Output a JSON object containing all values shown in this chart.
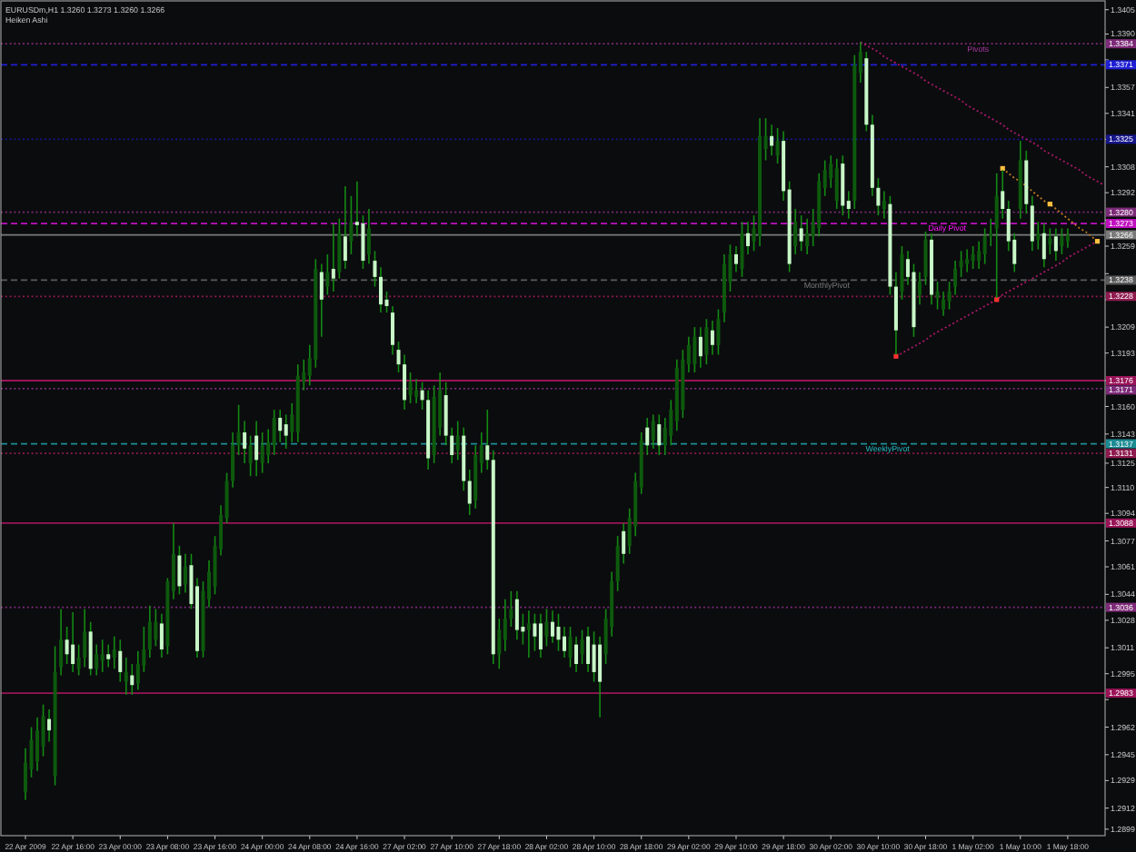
{
  "chart_data": {
    "type": "candlestick",
    "title": "EURUSDm,H1 1.3260 1.3273 1.3260 1.3266",
    "subtitle": "Heiken Ashi",
    "categories": [
      "22 Apr 2009",
      null,
      null,
      null,
      null,
      null,
      null,
      null,
      "22 Apr 16:00",
      null,
      null,
      null,
      null,
      null,
      null,
      null,
      "23 Apr 00:00",
      null,
      null,
      null,
      null,
      null,
      null,
      null,
      "23 Apr 08:00",
      null,
      null,
      null,
      null,
      null,
      null,
      null,
      "23 Apr 16:00",
      null,
      null,
      null,
      null,
      null,
      null,
      null,
      "24 Apr 00:00",
      null,
      null,
      null,
      null,
      null,
      null,
      null,
      "24 Apr 08:00",
      null,
      null,
      null,
      null,
      null,
      null,
      null,
      "24 Apr 16:00",
      null,
      null,
      null,
      null,
      null,
      null,
      null,
      "27 Apr 02:00",
      null,
      null,
      null,
      null,
      null,
      null,
      null,
      "27 Apr 10:00",
      null,
      null,
      null,
      null,
      null,
      null,
      null,
      "27 Apr 18:00",
      null,
      null,
      null,
      null,
      null,
      null,
      null,
      "28 Apr 02:00",
      null,
      null,
      null,
      null,
      null,
      null,
      null,
      "28 Apr 10:00",
      null,
      null,
      null,
      null,
      null,
      null,
      null,
      "28 Apr 18:00",
      null,
      null,
      null,
      null,
      null,
      null,
      null,
      "29 Apr 02:00",
      null,
      null,
      null,
      null,
      null,
      null,
      null,
      "29 Apr 10:00",
      null,
      null,
      null,
      null,
      null,
      null,
      null,
      "29 Apr 18:00",
      null,
      null,
      null,
      null,
      null,
      null,
      null,
      "30 Apr 02:00",
      null,
      null,
      null,
      null,
      null,
      null,
      null,
      "30 Apr 10:00",
      null,
      null,
      null,
      null,
      null,
      null,
      null,
      "30 Apr 18:00",
      null,
      null,
      null,
      null,
      null,
      null,
      null,
      "1 May 02:00",
      null,
      null,
      null,
      null,
      null,
      null,
      null,
      "1 May 10:00",
      null,
      null,
      null,
      null,
      null,
      null,
      null,
      "1 May 18:00",
      null,
      null,
      null,
      null,
      null,
      null
    ],
    "ohlc": [
      [
        1.2922,
        1.2949,
        1.2917,
        1.294
      ],
      [
        1.2936,
        1.2962,
        1.2931,
        1.2954
      ],
      [
        1.2941,
        1.2968,
        1.2935,
        1.296
      ],
      [
        1.295,
        1.2976,
        1.2944,
        1.2969
      ],
      [
        1.2967,
        1.2973,
        1.2953,
        1.296
      ],
      [
        1.2932,
        1.3012,
        1.2926,
        1.2996
      ],
      [
        1.2999,
        1.3035,
        1.2994,
        1.3016
      ],
      [
        1.3016,
        1.3024,
        1.3001,
        1.3007
      ],
      [
        1.3013,
        1.3033,
        1.2996,
        1.3001
      ],
      [
        1.2998,
        1.3013,
        1.2994,
        1.3005
      ],
      [
        1.3005,
        1.3035,
        1.2999,
        1.3021
      ],
      [
        1.3021,
        1.3027,
        1.2994,
        1.2998
      ],
      [
        1.2998,
        1.3013,
        1.2994,
        1.3007
      ],
      [
        1.3003,
        1.3016,
        1.2996,
        1.3007
      ],
      [
        1.3007,
        1.3013,
        1.2999,
        1.3004
      ],
      [
        1.3005,
        1.3018,
        1.2998,
        1.301
      ],
      [
        1.3009,
        1.3016,
        1.299,
        1.2996
      ],
      [
        1.299,
        1.3005,
        1.2982,
        1.2996
      ],
      [
        1.2994,
        1.3001,
        1.2982,
        1.2988
      ],
      [
        1.2989,
        1.3009,
        1.2985,
        1.3001
      ],
      [
        1.3,
        1.3024,
        1.2996,
        1.301
      ],
      [
        1.301,
        1.3037,
        1.3005,
        1.3027
      ],
      [
        1.3016,
        1.3035,
        1.3012,
        1.3027
      ],
      [
        1.3026,
        1.3032,
        1.3005,
        1.301
      ],
      [
        1.3012,
        1.3054,
        1.3007,
        1.3052
      ],
      [
        1.3046,
        1.3088,
        1.3041,
        1.3069
      ],
      [
        1.3068,
        1.3074,
        1.3044,
        1.3049
      ],
      [
        1.305,
        1.3069,
        1.3045,
        1.3061
      ],
      [
        1.3062,
        1.3069,
        1.3035,
        1.3038
      ],
      [
        1.3049,
        1.3054,
        1.3005,
        1.3009
      ],
      [
        1.3009,
        1.3052,
        1.3005,
        1.3046
      ],
      [
        1.3041,
        1.3065,
        1.3036,
        1.3058
      ],
      [
        1.3049,
        1.308,
        1.3044,
        1.3074
      ],
      [
        1.3072,
        1.3099,
        1.3068,
        1.3093
      ],
      [
        1.3091,
        1.3119,
        1.3088,
        1.3114
      ],
      [
        1.3114,
        1.3144,
        1.311,
        1.3136
      ],
      [
        1.3136,
        1.3161,
        1.313,
        1.3144
      ],
      [
        1.3144,
        1.3151,
        1.3125,
        1.3134
      ],
      [
        1.3125,
        1.3142,
        1.3117,
        1.3136
      ],
      [
        1.3142,
        1.3151,
        1.3117,
        1.3127
      ],
      [
        1.3125,
        1.3144,
        1.3119,
        1.3136
      ],
      [
        1.313,
        1.3146,
        1.3125,
        1.3138
      ],
      [
        1.3136,
        1.3158,
        1.313,
        1.3153
      ],
      [
        1.3153,
        1.3158,
        1.3138,
        1.3145
      ],
      [
        1.3149,
        1.3155,
        1.3134,
        1.3142
      ],
      [
        1.3144,
        1.3162,
        1.3138,
        1.3155
      ],
      [
        1.3144,
        1.3186,
        1.3138,
        1.3179
      ],
      [
        1.3175,
        1.3189,
        1.317,
        1.3181
      ],
      [
        1.3179,
        1.3198,
        1.3173,
        1.319
      ],
      [
        1.3189,
        1.3251,
        1.3184,
        1.3245
      ],
      [
        1.3243,
        1.3248,
        1.3203,
        1.3226
      ],
      [
        1.3234,
        1.3254,
        1.3229,
        1.3243
      ],
      [
        1.3245,
        1.3273,
        1.3231,
        1.3239
      ],
      [
        1.3243,
        1.3276,
        1.3239,
        1.3267
      ],
      [
        1.3265,
        1.3296,
        1.3245,
        1.325
      ],
      [
        1.3262,
        1.329,
        1.3254,
        1.3274
      ],
      [
        1.3274,
        1.3299,
        1.3265,
        1.3272
      ],
      [
        1.3273,
        1.3278,
        1.3245,
        1.325
      ],
      [
        1.3254,
        1.3282,
        1.3248,
        1.327
      ],
      [
        1.325,
        1.3256,
        1.3234,
        1.324
      ],
      [
        1.324,
        1.3246,
        1.3218,
        1.3223
      ],
      [
        1.3226,
        1.3231,
        1.3218,
        1.3222
      ],
      [
        1.3218,
        1.3222,
        1.3192,
        1.3198
      ],
      [
        1.3195,
        1.32,
        1.3181,
        1.3186
      ],
      [
        1.3186,
        1.3192,
        1.3158,
        1.3164
      ],
      [
        1.3167,
        1.3181,
        1.3162,
        1.3175
      ],
      [
        1.3166,
        1.3177,
        1.3162,
        1.317
      ],
      [
        1.317,
        1.3175,
        1.3158,
        1.3164
      ],
      [
        1.3164,
        1.317,
        1.3121,
        1.3128
      ],
      [
        1.313,
        1.3173,
        1.3125,
        1.3166
      ],
      [
        1.3147,
        1.3181,
        1.3142,
        1.317
      ],
      [
        1.3167,
        1.3175,
        1.3136,
        1.3142
      ],
      [
        1.3142,
        1.3147,
        1.3125,
        1.313
      ],
      [
        1.3133,
        1.3151,
        1.3127,
        1.3142
      ],
      [
        1.3142,
        1.3147,
        1.3108,
        1.3114
      ],
      [
        1.3114,
        1.3121,
        1.3093,
        1.31
      ],
      [
        1.3102,
        1.3136,
        1.3097,
        1.313
      ],
      [
        1.3125,
        1.3144,
        1.3119,
        1.3136
      ],
      [
        1.3136,
        1.3158,
        1.3121,
        1.3127
      ],
      [
        1.3127,
        1.3133,
        1.3001,
        1.3007
      ],
      [
        1.3007,
        1.3029,
        1.2998,
        1.3022
      ],
      [
        1.3016,
        1.3041,
        1.3009,
        1.3029
      ],
      [
        1.3029,
        1.3046,
        1.3024,
        1.3035
      ],
      [
        1.3041,
        1.3046,
        1.3016,
        1.3022
      ],
      [
        1.3024,
        1.3032,
        1.3013,
        1.3021
      ],
      [
        1.3022,
        1.3034,
        1.3005,
        1.3026
      ],
      [
        1.3026,
        1.3032,
        1.3009,
        1.3018
      ],
      [
        1.3026,
        1.3032,
        1.3005,
        1.301
      ],
      [
        1.3018,
        1.3035,
        1.3012,
        1.3027
      ],
      [
        1.3027,
        1.3034,
        1.3014,
        1.3018
      ],
      [
        1.3024,
        1.3032,
        1.3009,
        1.3016
      ],
      [
        1.3018,
        1.3024,
        1.3005,
        1.3009
      ],
      [
        1.3005,
        1.3024,
        1.2999,
        1.3018
      ],
      [
        1.3013,
        1.3018,
        1.2996,
        1.3001
      ],
      [
        1.3007,
        1.3022,
        1.3001,
        1.3016
      ],
      [
        1.3018,
        1.3024,
        1.2996,
        1.3001
      ],
      [
        1.3013,
        1.3021,
        1.299,
        1.2996
      ],
      [
        1.3013,
        1.3018,
        1.2968,
        1.299
      ],
      [
        1.3007,
        1.3035,
        1.3001,
        1.3029
      ],
      [
        1.3024,
        1.3058,
        1.3018,
        1.3052
      ],
      [
        1.3052,
        1.308,
        1.3046,
        1.3074
      ],
      [
        1.3083,
        1.3088,
        1.3063,
        1.3069
      ],
      [
        1.3074,
        1.3097,
        1.3069,
        1.3091
      ],
      [
        1.3086,
        1.3119,
        1.308,
        1.3114
      ],
      [
        1.311,
        1.3144,
        1.3106,
        1.3139
      ],
      [
        1.3147,
        1.3153,
        1.313,
        1.3136
      ],
      [
        1.3139,
        1.3155,
        1.3134,
        1.3151
      ],
      [
        1.3149,
        1.3155,
        1.313,
        1.3136
      ],
      [
        1.3136,
        1.3153,
        1.313,
        1.3147
      ],
      [
        1.3142,
        1.3164,
        1.3136,
        1.3158
      ],
      [
        1.3151,
        1.3189,
        1.3145,
        1.3184
      ],
      [
        1.3158,
        1.3195,
        1.3153,
        1.3189
      ],
      [
        1.3186,
        1.3203,
        1.3181,
        1.3198
      ],
      [
        1.3186,
        1.3209,
        1.3181,
        1.3203
      ],
      [
        1.3203,
        1.3209,
        1.3184,
        1.3191
      ],
      [
        1.3192,
        1.3214,
        1.3186,
        1.3209
      ],
      [
        1.3207,
        1.3213,
        1.3192,
        1.3198
      ],
      [
        1.3198,
        1.322,
        1.3192,
        1.3214
      ],
      [
        1.3218,
        1.3254,
        1.3212,
        1.3248
      ],
      [
        1.3237,
        1.326,
        1.3231,
        1.3254
      ],
      [
        1.3254,
        1.3259,
        1.3243,
        1.3248
      ],
      [
        1.3245,
        1.3274,
        1.324,
        1.3267
      ],
      [
        1.3267,
        1.3274,
        1.3254,
        1.3259
      ],
      [
        1.3262,
        1.3278,
        1.3256,
        1.327
      ],
      [
        1.3265,
        1.3338,
        1.3259,
        1.3327
      ],
      [
        1.3319,
        1.3338,
        1.3312,
        1.3327
      ],
      [
        1.3327,
        1.3334,
        1.3315,
        1.3321
      ],
      [
        1.3315,
        1.3332,
        1.331,
        1.3324
      ],
      [
        1.3324,
        1.333,
        1.3287,
        1.3293
      ],
      [
        1.3294,
        1.3299,
        1.3243,
        1.3248
      ],
      [
        1.3259,
        1.3282,
        1.3254,
        1.3274
      ],
      [
        1.327,
        1.3278,
        1.3256,
        1.3262
      ],
      [
        1.3259,
        1.3276,
        1.3254,
        1.3267
      ],
      [
        1.3265,
        1.3282,
        1.3259,
        1.3274
      ],
      [
        1.327,
        1.3304,
        1.3265,
        1.3299
      ],
      [
        1.3295,
        1.3312,
        1.329,
        1.3306
      ],
      [
        1.3301,
        1.3315,
        1.3295,
        1.331
      ],
      [
        1.3287,
        1.3313,
        1.3282,
        1.3307
      ],
      [
        1.331,
        1.3315,
        1.3278,
        1.3284
      ],
      [
        1.3287,
        1.3293,
        1.3276,
        1.3282
      ],
      [
        1.3287,
        1.3377,
        1.3282,
        1.3371
      ],
      [
        1.3366,
        1.3385,
        1.336,
        1.3379
      ],
      [
        1.3375,
        1.3379,
        1.333,
        1.3334
      ],
      [
        1.3334,
        1.334,
        1.329,
        1.3295
      ],
      [
        1.3295,
        1.3301,
        1.3278,
        1.3284
      ],
      [
        1.3282,
        1.3293,
        1.3276,
        1.3287
      ],
      [
        1.3285,
        1.329,
        1.3229,
        1.3234
      ],
      [
        1.3234,
        1.3243,
        1.3192,
        1.3207
      ],
      [
        1.3231,
        1.3259,
        1.3226,
        1.3254
      ],
      [
        1.3251,
        1.3256,
        1.3235,
        1.324
      ],
      [
        1.3243,
        1.3248,
        1.3203,
        1.3209
      ],
      [
        1.3229,
        1.3243,
        1.3223,
        1.3237
      ],
      [
        1.324,
        1.3268,
        1.3235,
        1.3263
      ],
      [
        1.3263,
        1.3267,
        1.3223,
        1.3229
      ],
      [
        1.3227,
        1.3237,
        1.322,
        1.3231
      ],
      [
        1.322,
        1.3231,
        1.3216,
        1.3226
      ],
      [
        1.3225,
        1.3237,
        1.322,
        1.3231
      ],
      [
        1.3234,
        1.325,
        1.3229,
        1.3245
      ],
      [
        1.3246,
        1.3256,
        1.324,
        1.325
      ],
      [
        1.3248,
        1.3257,
        1.3243,
        1.3251
      ],
      [
        1.325,
        1.3259,
        1.3245,
        1.3254
      ],
      [
        1.325,
        1.3262,
        1.3245,
        1.3256
      ],
      [
        1.3254,
        1.327,
        1.3248,
        1.3265
      ],
      [
        1.3265,
        1.3276,
        1.3259,
        1.3267
      ],
      [
        1.327,
        1.3304,
        1.3227,
        1.329
      ],
      [
        1.3293,
        1.3306,
        1.3276,
        1.3282
      ],
      [
        1.3282,
        1.3287,
        1.3256,
        1.3262
      ],
      [
        1.3263,
        1.3267,
        1.3243,
        1.3248
      ],
      [
        1.3282,
        1.3324,
        1.3276,
        1.3312
      ],
      [
        1.3312,
        1.3318,
        1.3279,
        1.3285
      ],
      [
        1.3284,
        1.329,
        1.3256,
        1.3262
      ],
      [
        1.3263,
        1.3274,
        1.3257,
        1.3267
      ],
      [
        1.3267,
        1.3273,
        1.3246,
        1.3251
      ],
      [
        1.326,
        1.327,
        1.3254,
        1.3264
      ],
      [
        1.3265,
        1.327,
        1.325,
        1.3256
      ],
      [
        1.3259,
        1.327,
        1.3254,
        1.3265
      ],
      [
        1.3262,
        1.327,
        1.3258,
        1.3266
      ],
      null,
      null,
      null,
      null,
      null,
      null
    ],
    "color": "#138a13",
    "colors": [
      "#0d5a0d",
      "#0d5a0d",
      "#0d5a0d",
      "#0d5a0d",
      "#c8f7c8",
      "#0d5a0d",
      "#0d5a0d",
      "#c8f7c8",
      "#c8f7c8",
      "#0d5a0d",
      "#0d5a0d",
      "#c8f7c8",
      "#0d5a0d",
      "#0d5a0d",
      "#c8f7c8",
      "#0d5a0d",
      "#c8f7c8",
      "#0d5a0d",
      "#c8f7c8",
      "#0d5a0d",
      "#0d5a0d",
      "#0d5a0d",
      "#0d5a0d",
      "#c8f7c8",
      "#0d5a0d",
      "#0d5a0d",
      "#c8f7c8",
      "#0d5a0d",
      "#c8f7c8",
      "#c8f7c8",
      "#0d5a0d",
      "#0d5a0d",
      "#0d5a0d",
      "#0d5a0d",
      "#0d5a0d",
      "#0d5a0d",
      "#0d5a0d",
      "#c8f7c8",
      "#0d5a0d",
      "#c8f7c8",
      "#0d5a0d",
      "#0d5a0d",
      "#0d5a0d",
      "#c8f7c8",
      "#c8f7c8",
      "#0d5a0d",
      "#0d5a0d",
      "#0d5a0d",
      "#0d5a0d",
      "#0d5a0d",
      "#c8f7c8",
      "#0d5a0d",
      "#c8f7c8",
      "#0d5a0d",
      "#c8f7c8",
      "#0d5a0d",
      "#c8f7c8",
      "#c8f7c8",
      "#0d5a0d",
      "#c8f7c8",
      "#c8f7c8",
      "#c8f7c8",
      "#c8f7c8",
      "#c8f7c8",
      "#c8f7c8",
      "#0d5a0d",
      "#0d5a0d",
      "#c8f7c8",
      "#c8f7c8",
      "#0d5a0d",
      "#0d5a0d",
      "#c8f7c8",
      "#c8f7c8",
      "#0d5a0d",
      "#c8f7c8",
      "#c8f7c8",
      "#0d5a0d",
      "#0d5a0d",
      "#c8f7c8",
      "#c8f7c8",
      "#0d5a0d",
      "#0d5a0d",
      "#0d5a0d",
      "#c8f7c8",
      "#c8f7c8",
      "#0d5a0d",
      "#c8f7c8",
      "#c8f7c8",
      "#0d5a0d",
      "#c8f7c8",
      "#c8f7c8",
      "#c8f7c8",
      "#0d5a0d",
      "#c8f7c8",
      "#0d5a0d",
      "#c8f7c8",
      "#c8f7c8",
      "#c8f7c8",
      "#0d5a0d",
      "#0d5a0d",
      "#0d5a0d",
      "#c8f7c8",
      "#0d5a0d",
      "#0d5a0d",
      "#0d5a0d",
      "#c8f7c8",
      "#0d5a0d",
      "#c8f7c8",
      "#0d5a0d",
      "#0d5a0d",
      "#0d5a0d",
      "#0d5a0d",
      "#0d5a0d",
      "#0d5a0d",
      "#c8f7c8",
      "#0d5a0d",
      "#c8f7c8",
      "#0d5a0d",
      "#0d5a0d",
      "#0d5a0d",
      "#c8f7c8",
      "#0d5a0d",
      "#c8f7c8",
      "#0d5a0d",
      "#0d5a0d",
      "#0d5a0d",
      "#c8f7c8",
      "#0d5a0d",
      "#c8f7c8",
      "#c8f7c8",
      "#0d5a0d",
      "#c8f7c8",
      "#0d5a0d",
      "#0d5a0d",
      "#0d5a0d",
      "#0d5a0d",
      "#0d5a0d",
      "#0d5a0d",
      "#c8f7c8",
      "#c8f7c8",
      "#0d5a0d",
      "#0d5a0d",
      "#c8f7c8",
      "#c8f7c8",
      "#c8f7c8",
      "#0d5a0d",
      "#c8f7c8",
      "#c8f7c8",
      "#0d5a0d",
      "#c8f7c8",
      "#c8f7c8",
      "#0d5a0d",
      "#0d5a0d",
      "#c8f7c8",
      "#0d5a0d",
      "#0d5a0d",
      "#0d5a0d",
      "#0d5a0d",
      "#0d5a0d",
      "#0d5a0d",
      "#0d5a0d",
      "#0d5a0d",
      "#0d5a0d",
      "#0d5a0d",
      "#0d5a0d",
      "#c8f7c8",
      "#c8f7c8",
      "#c8f7c8",
      "#0d5a0d",
      "#c8f7c8",
      "#c8f7c8",
      "#0d5a0d",
      "#c8f7c8",
      "#0d5a0d",
      "#c8f7c8",
      "#0d5a0d",
      "#0d5a0d",
      null,
      null,
      null,
      null,
      null,
      null
    ],
    "series": [
      {
        "type": "line",
        "color": "#a8186a",
        "line_style": "dotted",
        "values": [
          null,
          null,
          null,
          null,
          null,
          null,
          null,
          null,
          null,
          null,
          null,
          null,
          null,
          null,
          null,
          null,
          null,
          null,
          null,
          null,
          null,
          null,
          null,
          null,
          null,
          null,
          null,
          null,
          null,
          null,
          null,
          null,
          null,
          null,
          null,
          null,
          null,
          null,
          null,
          null,
          null,
          null,
          null,
          null,
          null,
          null,
          null,
          null,
          null,
          null,
          null,
          null,
          null,
          null,
          null,
          null,
          null,
          null,
          null,
          null,
          null,
          null,
          null,
          null,
          null,
          null,
          null,
          null,
          null,
          null,
          null,
          null,
          null,
          null,
          null,
          null,
          null,
          null,
          null,
          null,
          null,
          null,
          null,
          null,
          null,
          null,
          null,
          null,
          null,
          null,
          null,
          null,
          null,
          null,
          null,
          null,
          null,
          null,
          null,
          null,
          null,
          null,
          null,
          null,
          null,
          null,
          null,
          null,
          null,
          null,
          null,
          null,
          null,
          null,
          null,
          null,
          null,
          null,
          null,
          null,
          null,
          null,
          null,
          null,
          null,
          null,
          null,
          null,
          null,
          null,
          null,
          null,
          null,
          null,
          null,
          null,
          null,
          null,
          null,
          null,
          null,
          1.3385,
          1.3383,
          1.3381,
          1.3379,
          1.3376,
          1.3374,
          1.3372,
          1.337,
          1.3368,
          1.3366,
          1.3364,
          1.3361,
          1.3359,
          1.3357,
          1.3355,
          1.3353,
          1.3351,
          1.3349,
          1.3346,
          1.3344,
          1.3342,
          1.334,
          1.3338,
          1.3336,
          1.3334,
          1.3331,
          1.3329,
          1.3327,
          1.3325,
          1.3323,
          1.3321,
          1.3318,
          1.3316,
          1.3314,
          1.3312,
          1.331,
          1.3308,
          1.3306,
          1.3303,
          1.3301,
          1.3299,
          1.3297
        ]
      },
      {
        "type": "line",
        "color": "#a8186a",
        "line_style": "dotted",
        "values": [
          null,
          null,
          null,
          null,
          null,
          null,
          null,
          null,
          null,
          null,
          null,
          null,
          null,
          null,
          null,
          null,
          null,
          null,
          null,
          null,
          null,
          null,
          null,
          null,
          null,
          null,
          null,
          null,
          null,
          null,
          null,
          null,
          null,
          null,
          null,
          null,
          null,
          null,
          null,
          null,
          null,
          null,
          null,
          null,
          null,
          null,
          null,
          null,
          null,
          null,
          null,
          null,
          null,
          null,
          null,
          null,
          null,
          null,
          null,
          null,
          null,
          null,
          null,
          null,
          null,
          null,
          null,
          null,
          null,
          null,
          null,
          null,
          null,
          null,
          null,
          null,
          null,
          null,
          null,
          null,
          null,
          null,
          null,
          null,
          null,
          null,
          null,
          null,
          null,
          null,
          null,
          null,
          null,
          null,
          null,
          null,
          null,
          null,
          null,
          null,
          null,
          null,
          null,
          null,
          null,
          null,
          null,
          null,
          null,
          null,
          null,
          null,
          null,
          null,
          null,
          null,
          null,
          null,
          null,
          null,
          null,
          null,
          null,
          null,
          null,
          null,
          null,
          null,
          null,
          null,
          null,
          null,
          null,
          null,
          null,
          null,
          null,
          null,
          null,
          null,
          null,
          null,
          null,
          null,
          null,
          null,
          null,
          1.3191,
          1.3193,
          1.3195,
          1.3197,
          1.3199,
          1.3201,
          1.3204,
          1.3206,
          1.3208,
          1.321,
          1.3212,
          1.3214,
          1.3216,
          1.3218,
          1.322,
          1.3222,
          1.3224,
          1.3226,
          1.3229,
          1.3231,
          1.3233,
          1.3235,
          1.3237,
          1.3239,
          1.3241,
          1.3243,
          1.3245,
          1.3247,
          1.3249,
          1.3252,
          1.3254,
          1.3256,
          1.3258,
          1.326,
          1.3262,
          null
        ]
      },
      {
        "type": "line",
        "color": "#c07a1e",
        "line_style": "dotted",
        "values": [
          null,
          null,
          null,
          null,
          null,
          null,
          null,
          null,
          null,
          null,
          null,
          null,
          null,
          null,
          null,
          null,
          null,
          null,
          null,
          null,
          null,
          null,
          null,
          null,
          null,
          null,
          null,
          null,
          null,
          null,
          null,
          null,
          null,
          null,
          null,
          null,
          null,
          null,
          null,
          null,
          null,
          null,
          null,
          null,
          null,
          null,
          null,
          null,
          null,
          null,
          null,
          null,
          null,
          null,
          null,
          null,
          null,
          null,
          null,
          null,
          null,
          null,
          null,
          null,
          null,
          null,
          null,
          null,
          null,
          null,
          null,
          null,
          null,
          null,
          null,
          null,
          null,
          null,
          null,
          null,
          null,
          null,
          null,
          null,
          null,
          null,
          null,
          null,
          null,
          null,
          null,
          null,
          null,
          null,
          null,
          null,
          null,
          null,
          null,
          null,
          null,
          null,
          null,
          null,
          null,
          null,
          null,
          null,
          null,
          null,
          null,
          null,
          null,
          null,
          null,
          null,
          null,
          null,
          null,
          null,
          null,
          null,
          null,
          null,
          null,
          null,
          null,
          null,
          null,
          null,
          null,
          null,
          null,
          null,
          null,
          null,
          null,
          null,
          null,
          null,
          null,
          null,
          null,
          null,
          null,
          null,
          null,
          null,
          null,
          null,
          null,
          null,
          null,
          null,
          null,
          null,
          null,
          null,
          null,
          null,
          null,
          null,
          null,
          null,
          null,
          1.3307,
          1.3304,
          1.3301,
          1.3299,
          1.3296,
          1.3293,
          1.329,
          1.3287,
          1.3285,
          1.3282,
          1.3279,
          1.3276,
          1.3273,
          1.327,
          1.3268,
          1.3265,
          1.3262,
          null
        ]
      },
      {
        "type": "scatter",
        "color": "#ff3030",
        "marker": "square",
        "values": [
          null,
          null,
          null,
          null,
          null,
          null,
          null,
          null,
          null,
          null,
          null,
          null,
          null,
          null,
          null,
          null,
          null,
          null,
          null,
          null,
          null,
          null,
          null,
          null,
          null,
          null,
          null,
          null,
          null,
          null,
          null,
          null,
          null,
          null,
          null,
          null,
          null,
          null,
          null,
          null,
          null,
          null,
          null,
          null,
          null,
          null,
          null,
          null,
          null,
          null,
          null,
          null,
          null,
          null,
          null,
          null,
          null,
          null,
          null,
          null,
          null,
          null,
          null,
          null,
          null,
          null,
          null,
          null,
          null,
          null,
          null,
          null,
          null,
          null,
          null,
          null,
          null,
          null,
          null,
          null,
          null,
          null,
          null,
          null,
          null,
          null,
          null,
          null,
          null,
          null,
          null,
          null,
          null,
          null,
          null,
          null,
          null,
          null,
          null,
          null,
          null,
          null,
          null,
          null,
          null,
          null,
          null,
          null,
          null,
          null,
          null,
          null,
          null,
          null,
          null,
          null,
          null,
          null,
          null,
          null,
          null,
          null,
          null,
          null,
          null,
          null,
          null,
          null,
          null,
          null,
          null,
          null,
          null,
          null,
          null,
          null,
          null,
          null,
          null,
          null,
          null,
          null,
          null,
          null,
          null,
          null,
          null,
          1.3191,
          null,
          null,
          null,
          null,
          null,
          null,
          null,
          null,
          null,
          null,
          null,
          null,
          null,
          null,
          null,
          null,
          1.3226,
          null,
          null,
          null,
          null,
          null,
          null,
          null,
          null,
          null,
          null,
          null,
          null,
          null,
          null,
          null,
          null,
          null,
          null
        ]
      },
      {
        "type": "scatter",
        "color": "#ffc040",
        "marker": "square",
        "values": [
          null,
          null,
          null,
          null,
          null,
          null,
          null,
          null,
          null,
          null,
          null,
          null,
          null,
          null,
          null,
          null,
          null,
          null,
          null,
          null,
          null,
          null,
          null,
          null,
          null,
          null,
          null,
          null,
          null,
          null,
          null,
          null,
          null,
          null,
          null,
          null,
          null,
          null,
          null,
          null,
          null,
          null,
          null,
          null,
          null,
          null,
          null,
          null,
          null,
          null,
          null,
          null,
          null,
          null,
          null,
          null,
          null,
          null,
          null,
          null,
          null,
          null,
          null,
          null,
          null,
          null,
          null,
          null,
          null,
          null,
          null,
          null,
          null,
          null,
          null,
          null,
          null,
          null,
          null,
          null,
          null,
          null,
          null,
          null,
          null,
          null,
          null,
          null,
          null,
          null,
          null,
          null,
          null,
          null,
          null,
          null,
          null,
          null,
          null,
          null,
          null,
          null,
          null,
          null,
          null,
          null,
          null,
          null,
          null,
          null,
          null,
          null,
          null,
          null,
          null,
          null,
          null,
          null,
          null,
          null,
          null,
          null,
          null,
          null,
          null,
          null,
          null,
          null,
          null,
          null,
          null,
          null,
          null,
          null,
          null,
          null,
          null,
          null,
          null,
          null,
          null,
          null,
          null,
          null,
          null,
          null,
          null,
          null,
          null,
          null,
          null,
          null,
          null,
          null,
          null,
          null,
          null,
          null,
          null,
          null,
          null,
          null,
          null,
          null,
          null,
          1.3307,
          null,
          null,
          null,
          null,
          null,
          null,
          null,
          1.3285,
          null,
          null,
          null,
          null,
          null,
          null,
          null,
          1.3262,
          null
        ]
      }
    ],
    "ylim": [
      1.2895,
      1.3411
    ],
    "yticks": [
      1.3405,
      {
        "value": 1.339,
        "label": "1.3390"
      },
      {
        "value": 1.3374,
        "label": null
      },
      1.3357,
      1.3341,
      {
        "value": 1.3325,
        "label": null
      },
      1.3308,
      1.3292,
      {
        "value": 1.3275,
        "label": null
      },
      1.3259,
      {
        "value": 1.3242,
        "label": null
      },
      {
        "value": 1.3226,
        "label": null
      },
      1.3209,
      1.3193,
      {
        "value": 1.3176,
        "label": null
      },
      {
        "value": 1.316,
        "label": "1.3160"
      },
      1.3143,
      1.3125,
      {
        "value": 1.311,
        "label": "1.3110"
      },
      1.3094,
      1.3077,
      1.3061,
      1.3044,
      1.3028,
      1.3011,
      1.2995,
      {
        "value": 1.2979,
        "label": null
      },
      1.2962,
      1.2945,
      1.2929,
      1.2912,
      1.2899
    ],
    "ref_lines": [
      {
        "axis": "y",
        "value": 1.3384,
        "label": "Pivots",
        "color": "#7d2a78",
        "line_style": "dotted"
      },
      {
        "axis": "y",
        "value": 1.3371,
        "color": "#1f1fd6",
        "line_style": "dashed"
      },
      {
        "axis": "y",
        "value": 1.3325,
        "color": "#16168c",
        "line_style": "dotted"
      },
      {
        "axis": "y",
        "value": 1.328,
        "color": "#7d2a78",
        "line_style": "dotted"
      },
      {
        "axis": "y",
        "value": 1.3273,
        "label": "Daily Pivot",
        "color": "#c010c0",
        "line_style": "dashed"
      },
      {
        "axis": "y",
        "value": 1.3266,
        "color": "#7a7a7a",
        "line_style": "solid"
      },
      {
        "axis": "y",
        "value": 1.3238,
        "label": "MonthlyPivot",
        "color": "#5a5a5a",
        "line_style": "dashed"
      },
      {
        "axis": "y",
        "value": 1.3228,
        "color": "#8e1a4e",
        "line_style": "dotted"
      },
      {
        "axis": "y",
        "value": 1.3176,
        "color": "#9a1458",
        "line_style": "solid"
      },
      {
        "axis": "y",
        "value": 1.3171,
        "color": "#7d2a78",
        "line_style": "dotted"
      },
      {
        "axis": "y",
        "value": 1.3137,
        "label": "WeeklyPivot",
        "color": "#1c8c94",
        "line_style": "dashed"
      },
      {
        "axis": "y",
        "value": 1.3131,
        "color": "#8e1a4e",
        "line_style": "dotted"
      },
      {
        "axis": "y",
        "value": 1.3088,
        "color": "#9a1458",
        "line_style": "solid"
      },
      {
        "axis": "y",
        "value": 1.3036,
        "color": "#7d2a78",
        "line_style": "dotted"
      },
      {
        "axis": "y",
        "value": 1.2983,
        "color": "#9a1458",
        "line_style": "solid"
      }
    ],
    "annotations": [
      {
        "text": "1.3384",
        "y": 1.3384
      },
      {
        "text": "1.3371",
        "y": 1.3371
      },
      {
        "text": "1.3325",
        "y": 1.3325
      },
      {
        "text": "1.3280",
        "y": 1.328
      },
      {
        "text": "1.3273",
        "y": 1.3273
      },
      {
        "text": "1.3266",
        "y": 1.3266
      },
      {
        "text": "1.3238",
        "y": 1.3238
      },
      {
        "text": "1.3228",
        "y": 1.3228
      },
      {
        "text": "1.3176",
        "y": 1.3176
      },
      {
        "text": "1.3171",
        "y": 1.3171
      },
      {
        "text": "1.3137",
        "y": 1.3137
      },
      {
        "text": "1.3131",
        "y": 1.3131
      },
      {
        "text": "1.3088",
        "y": 1.3088
      },
      {
        "text": "1.3036",
        "y": 1.3036
      },
      {
        "text": "1.2983",
        "y": 1.2983
      }
    ]
  }
}
